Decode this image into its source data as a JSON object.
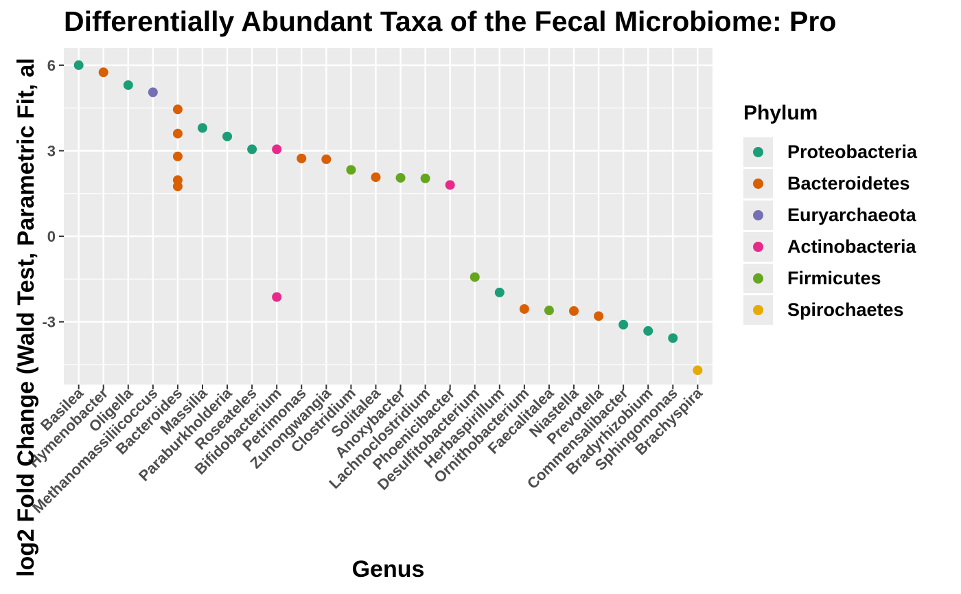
{
  "chart_data": {
    "type": "scatter",
    "title": "Differentially Abundant Taxa of the Fecal Microbiome: Pro",
    "xlabel": "Genus",
    "ylabel": "log2 Fold Change (Wald Test, Parametric Fit, al",
    "ylim": [
      -5.2,
      6.6
    ],
    "yticks": [
      6,
      3,
      0,
      -3
    ],
    "ytick_labels": [
      "6",
      "3",
      "0",
      "-3"
    ],
    "grid": true,
    "legend_title": "Phylum",
    "legend_position": "right",
    "categories": [
      "Basilea",
      "Hymenobacter",
      "Oligella",
      "Methanomassiliicoccus",
      "Bacteroides",
      "Massilia",
      "Paraburkholderia",
      "Roseateles",
      "Bifidobacterium",
      "Petrimonas",
      "Zunongwangia",
      "Clostridium",
      "Solitalea",
      "Anoxybacter",
      "Lachnoclostridium",
      "Phoenicibacter",
      "Desulfitobacterium",
      "Herbaspirillum",
      "Ornithobacterium",
      "Faecalitalea",
      "Niastella",
      "Prevotella",
      "Commensalibacter",
      "Bradyrhizobium",
      "Sphingomonas",
      "Brachyspira"
    ],
    "series": [
      {
        "name": "Proteobacteria",
        "color": "#1b9e77",
        "points": [
          {
            "x": "Basilea",
            "y": 6.0
          },
          {
            "x": "Oligella",
            "y": 5.3
          },
          {
            "x": "Massilia",
            "y": 3.8
          },
          {
            "x": "Paraburkholderia",
            "y": 3.5
          },
          {
            "x": "Roseateles",
            "y": 3.05
          },
          {
            "x": "Herbaspirillum",
            "y": -1.97
          },
          {
            "x": "Commensalibacter",
            "y": -3.1
          },
          {
            "x": "Bradyrhizobium",
            "y": -3.32
          },
          {
            "x": "Sphingomonas",
            "y": -3.57
          }
        ]
      },
      {
        "name": "Bacteroidetes",
        "color": "#d95f02",
        "points": [
          {
            "x": "Hymenobacter",
            "y": 5.75
          },
          {
            "x": "Bacteroides",
            "y": 4.45
          },
          {
            "x": "Bacteroides",
            "y": 3.6
          },
          {
            "x": "Bacteroides",
            "y": 2.8
          },
          {
            "x": "Bacteroides",
            "y": 1.97
          },
          {
            "x": "Bacteroides",
            "y": 1.75
          },
          {
            "x": "Petrimonas",
            "y": 2.73
          },
          {
            "x": "Zunongwangia",
            "y": 2.7
          },
          {
            "x": "Solitalea",
            "y": 2.07
          },
          {
            "x": "Ornithobacterium",
            "y": -2.55
          },
          {
            "x": "Niastella",
            "y": -2.62
          },
          {
            "x": "Prevotella",
            "y": -2.8
          }
        ]
      },
      {
        "name": "Euryarchaeota",
        "color": "#7570b3",
        "points": [
          {
            "x": "Methanomassiliicoccus",
            "y": 5.05
          }
        ]
      },
      {
        "name": "Actinobacteria",
        "color": "#e7298a",
        "points": [
          {
            "x": "Bifidobacterium",
            "y": 3.05
          },
          {
            "x": "Bifidobacterium",
            "y": -2.13
          },
          {
            "x": "Phoenicibacter",
            "y": 1.8
          }
        ]
      },
      {
        "name": "Firmicutes",
        "color": "#66a61e",
        "points": [
          {
            "x": "Clostridium",
            "y": 2.33
          },
          {
            "x": "Anoxybacter",
            "y": 2.05
          },
          {
            "x": "Lachnoclostridium",
            "y": 2.03
          },
          {
            "x": "Desulfitobacterium",
            "y": -1.43
          },
          {
            "x": "Faecalitalea",
            "y": -2.6
          }
        ]
      },
      {
        "name": "Spirochaetes",
        "color": "#e6ab02",
        "points": [
          {
            "x": "Brachyspira",
            "y": -4.7
          }
        ]
      }
    ]
  }
}
